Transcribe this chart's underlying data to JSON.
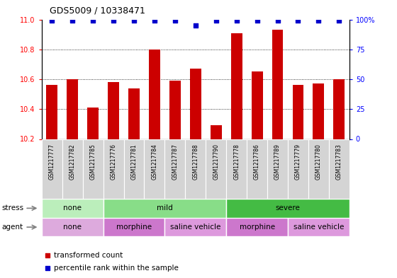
{
  "title": "GDS5009 / 10338471",
  "samples": [
    "GSM1217777",
    "GSM1217782",
    "GSM1217785",
    "GSM1217776",
    "GSM1217781",
    "GSM1217784",
    "GSM1217787",
    "GSM1217788",
    "GSM1217790",
    "GSM1217778",
    "GSM1217786",
    "GSM1217789",
    "GSM1217779",
    "GSM1217780",
    "GSM1217783"
  ],
  "bar_values": [
    10.56,
    10.6,
    10.41,
    10.58,
    10.54,
    10.8,
    10.59,
    10.67,
    10.29,
    10.91,
    10.65,
    10.93,
    10.56,
    10.57,
    10.6
  ],
  "percentile_values": [
    99,
    99,
    99,
    99,
    99,
    99,
    99,
    95,
    99,
    99,
    99,
    99,
    99,
    99,
    99
  ],
  "bar_color": "#cc0000",
  "percentile_color": "#0000cc",
  "ylim_left": [
    10.2,
    11.0
  ],
  "ylim_right": [
    0,
    100
  ],
  "yticks_left": [
    10.2,
    10.4,
    10.6,
    10.8,
    11.0
  ],
  "yticks_right": [
    0,
    25,
    50,
    75,
    100
  ],
  "stress_groups": [
    {
      "label": "none",
      "start": 0,
      "end": 3,
      "color": "#bbeebb"
    },
    {
      "label": "mild",
      "start": 3,
      "end": 9,
      "color": "#88dd88"
    },
    {
      "label": "severe",
      "start": 9,
      "end": 15,
      "color": "#44bb44"
    }
  ],
  "agent_groups": [
    {
      "label": "none",
      "start": 0,
      "end": 3,
      "color": "#ddaadd"
    },
    {
      "label": "morphine",
      "start": 3,
      "end": 6,
      "color": "#cc77cc"
    },
    {
      "label": "saline vehicle",
      "start": 6,
      "end": 9,
      "color": "#dd99dd"
    },
    {
      "label": "morphine",
      "start": 9,
      "end": 12,
      "color": "#cc77cc"
    },
    {
      "label": "saline vehicle",
      "start": 12,
      "end": 15,
      "color": "#dd99dd"
    }
  ],
  "legend_bar_label": "transformed count",
  "legend_pct_label": "percentile rank within the sample",
  "stress_label": "stress",
  "agent_label": "agent",
  "stress_colors": {
    "none": "#bbeebb",
    "mild": "#88dd88",
    "severe": "#44bb44"
  },
  "agent_colors": {
    "none": "#ddaadd",
    "morphine": "#cc77cc",
    "saline vehicle": "#dd99dd"
  }
}
